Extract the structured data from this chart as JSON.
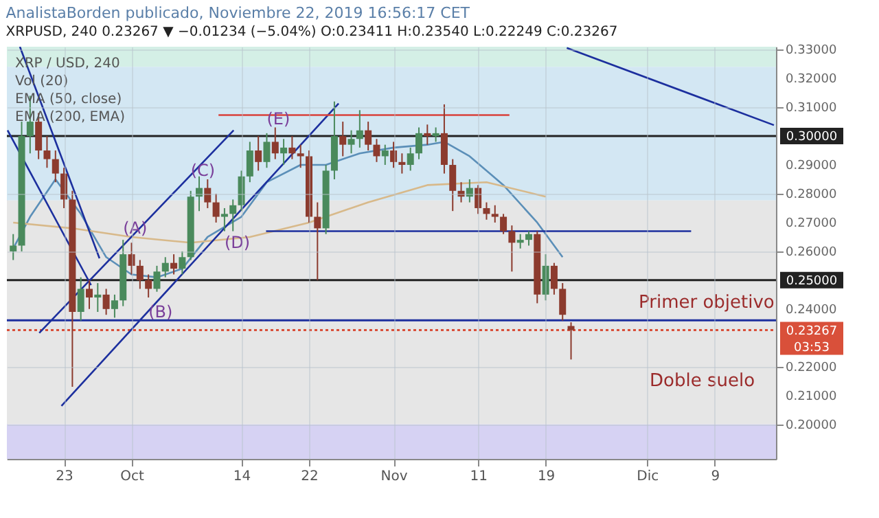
{
  "chart_data": {
    "type": "candlestick",
    "title": "AnalistaBorden publicado, Noviembre 22, 2019 16:56:17 CET",
    "subtitle": "XRPUSD, 240 0.23267 ▼ −0.01234 (−5.04%) O:0.23411 H:0.23540 L:0.22249 C:0.23267",
    "x": [
      "2019-09-17",
      "2019-09-18",
      "2019-09-19",
      "2019-09-20",
      "2019-09-21",
      "2019-09-22",
      "2019-09-23",
      "2019-09-24",
      "2019-09-25",
      "2019-09-26",
      "2019-09-27",
      "2019-09-28",
      "2019-09-29",
      "2019-09-30",
      "2019-10-01",
      "2019-10-02",
      "2019-10-03",
      "2019-10-04",
      "2019-10-05",
      "2019-10-06",
      "2019-10-07",
      "2019-10-08",
      "2019-10-09",
      "2019-10-10",
      "2019-10-11",
      "2019-10-12",
      "2019-10-13",
      "2019-10-14",
      "2019-10-15",
      "2019-10-16",
      "2019-10-17",
      "2019-10-18",
      "2019-10-19",
      "2019-10-20",
      "2019-10-21",
      "2019-10-22",
      "2019-10-23",
      "2019-10-24",
      "2019-10-25",
      "2019-10-26",
      "2019-10-27",
      "2019-10-28",
      "2019-10-29",
      "2019-10-30",
      "2019-10-31",
      "2019-11-01",
      "2019-11-02",
      "2019-11-03",
      "2019-11-04",
      "2019-11-05",
      "2019-11-06",
      "2019-11-07",
      "2019-11-08",
      "2019-11-09",
      "2019-11-10",
      "2019-11-11",
      "2019-11-12",
      "2019-11-13",
      "2019-11-14",
      "2019-11-15",
      "2019-11-16",
      "2019-11-17",
      "2019-11-18",
      "2019-11-19",
      "2019-11-20",
      "2019-11-21",
      "2019-11-22"
    ],
    "ohlc": [
      [
        0.26,
        0.266,
        0.257,
        0.262
      ],
      [
        0.262,
        0.305,
        0.26,
        0.3
      ],
      [
        0.3,
        0.314,
        0.294,
        0.305
      ],
      [
        0.305,
        0.308,
        0.292,
        0.295
      ],
      [
        0.295,
        0.3,
        0.289,
        0.292
      ],
      [
        0.292,
        0.295,
        0.284,
        0.287
      ],
      [
        0.287,
        0.289,
        0.275,
        0.278
      ],
      [
        0.278,
        0.281,
        0.213,
        0.239
      ],
      [
        0.239,
        0.251,
        0.236,
        0.247
      ],
      [
        0.247,
        0.25,
        0.24,
        0.244
      ],
      [
        0.244,
        0.249,
        0.239,
        0.245
      ],
      [
        0.245,
        0.247,
        0.238,
        0.24
      ],
      [
        0.24,
        0.245,
        0.237,
        0.243
      ],
      [
        0.243,
        0.264,
        0.241,
        0.259
      ],
      [
        0.259,
        0.263,
        0.252,
        0.255
      ],
      [
        0.255,
        0.257,
        0.247,
        0.25
      ],
      [
        0.25,
        0.252,
        0.244,
        0.247
      ],
      [
        0.247,
        0.255,
        0.246,
        0.253
      ],
      [
        0.253,
        0.258,
        0.251,
        0.256
      ],
      [
        0.256,
        0.259,
        0.252,
        0.254
      ],
      [
        0.254,
        0.26,
        0.252,
        0.258
      ],
      [
        0.258,
        0.281,
        0.257,
        0.279
      ],
      [
        0.279,
        0.286,
        0.274,
        0.282
      ],
      [
        0.282,
        0.285,
        0.275,
        0.277
      ],
      [
        0.277,
        0.28,
        0.27,
        0.272
      ],
      [
        0.272,
        0.275,
        0.267,
        0.273
      ],
      [
        0.273,
        0.278,
        0.267,
        0.276
      ],
      [
        0.276,
        0.288,
        0.274,
        0.286
      ],
      [
        0.286,
        0.298,
        0.284,
        0.295
      ],
      [
        0.295,
        0.3,
        0.288,
        0.291
      ],
      [
        0.291,
        0.301,
        0.289,
        0.298
      ],
      [
        0.298,
        0.303,
        0.292,
        0.294
      ],
      [
        0.294,
        0.299,
        0.29,
        0.296
      ],
      [
        0.296,
        0.3,
        0.292,
        0.294
      ],
      [
        0.294,
        0.297,
        0.289,
        0.293
      ],
      [
        0.293,
        0.295,
        0.27,
        0.272
      ],
      [
        0.272,
        0.277,
        0.25,
        0.268
      ],
      [
        0.268,
        0.29,
        0.266,
        0.288
      ],
      [
        0.288,
        0.312,
        0.285,
        0.3
      ],
      [
        0.3,
        0.305,
        0.293,
        0.297
      ],
      [
        0.297,
        0.302,
        0.294,
        0.299
      ],
      [
        0.299,
        0.309,
        0.296,
        0.302
      ],
      [
        0.302,
        0.305,
        0.295,
        0.297
      ],
      [
        0.297,
        0.299,
        0.291,
        0.293
      ],
      [
        0.293,
        0.297,
        0.29,
        0.295
      ],
      [
        0.295,
        0.298,
        0.289,
        0.291
      ],
      [
        0.291,
        0.294,
        0.287,
        0.29
      ],
      [
        0.29,
        0.296,
        0.288,
        0.294
      ],
      [
        0.294,
        0.303,
        0.292,
        0.301
      ],
      [
        0.301,
        0.304,
        0.297,
        0.3
      ],
      [
        0.3,
        0.303,
        0.298,
        0.301
      ],
      [
        0.301,
        0.311,
        0.287,
        0.29
      ],
      [
        0.29,
        0.292,
        0.274,
        0.281
      ],
      [
        0.281,
        0.284,
        0.277,
        0.279
      ],
      [
        0.279,
        0.285,
        0.277,
        0.282
      ],
      [
        0.282,
        0.283,
        0.273,
        0.275
      ],
      [
        0.275,
        0.277,
        0.271,
        0.273
      ],
      [
        0.273,
        0.276,
        0.27,
        0.272
      ],
      [
        0.272,
        0.273,
        0.266,
        0.267
      ],
      [
        0.267,
        0.269,
        0.253,
        0.263
      ],
      [
        0.263,
        0.266,
        0.261,
        0.264
      ],
      [
        0.264,
        0.267,
        0.262,
        0.266
      ],
      [
        0.266,
        0.267,
        0.242,
        0.245
      ],
      [
        0.245,
        0.259,
        0.243,
        0.255
      ],
      [
        0.255,
        0.256,
        0.245,
        0.247
      ],
      [
        0.247,
        0.249,
        0.236,
        0.238
      ],
      [
        0.23411,
        0.2354,
        0.22249,
        0.23267
      ]
    ],
    "colors": [
      "#4a8a5c",
      "#4a8a5c",
      "#4a8a5c",
      "#8c3b2e",
      "#8c3b2e",
      "#8c3b2e",
      "#8c3b2e",
      "#8c3b2e",
      "#4a8a5c",
      "#8c3b2e",
      "#4a8a5c",
      "#8c3b2e",
      "#4a8a5c",
      "#4a8a5c",
      "#8c3b2e",
      "#8c3b2e",
      "#8c3b2e",
      "#4a8a5c",
      "#4a8a5c",
      "#8c3b2e",
      "#4a8a5c",
      "#4a8a5c",
      "#4a8a5c",
      "#8c3b2e",
      "#8c3b2e",
      "#4a8a5c",
      "#4a8a5c",
      "#4a8a5c",
      "#4a8a5c",
      "#8c3b2e",
      "#4a8a5c",
      "#8c3b2e",
      "#4a8a5c",
      "#8c3b2e",
      "#8c3b2e",
      "#8c3b2e",
      "#8c3b2e",
      "#4a8a5c",
      "#4a8a5c",
      "#8c3b2e",
      "#4a8a5c",
      "#4a8a5c",
      "#8c3b2e",
      "#8c3b2e",
      "#4a8a5c",
      "#8c3b2e",
      "#8c3b2e",
      "#4a8a5c",
      "#4a8a5c",
      "#8c3b2e",
      "#4a8a5c",
      "#8c3b2e",
      "#8c3b2e",
      "#8c3b2e",
      "#4a8a5c",
      "#8c3b2e",
      "#8c3b2e",
      "#8c3b2e",
      "#8c3b2e",
      "#8c3b2e",
      "#4a8a5c",
      "#4a8a5c",
      "#8c3b2e",
      "#4a8a5c",
      "#8c3b2e",
      "#8c3b2e",
      "#8c3b2e"
    ],
    "series": [
      {
        "type": "line",
        "color": "#5b8fb8",
        "x": [
          "2019-09-17",
          "2019-09-19",
          "2019-09-22",
          "2019-09-25",
          "2019-09-28",
          "2019-10-01",
          "2019-10-04",
          "2019-10-07",
          "2019-10-10",
          "2019-10-14",
          "2019-10-17",
          "2019-10-21",
          "2019-10-24",
          "2019-10-28",
          "2019-11-01",
          "2019-11-05",
          "2019-11-07",
          "2019-11-10",
          "2019-11-14",
          "2019-11-18",
          "2019-11-21"
        ],
        "values": [
          0.261,
          0.272,
          0.285,
          0.273,
          0.258,
          0.252,
          0.251,
          0.254,
          0.265,
          0.272,
          0.284,
          0.29,
          0.29,
          0.294,
          0.296,
          0.297,
          0.298,
          0.293,
          0.283,
          0.27,
          0.258
        ]
      },
      {
        "type": "line",
        "color": "#d8b98a",
        "x": [
          "2019-09-17",
          "2019-09-24",
          "2019-10-01",
          "2019-10-08",
          "2019-10-15",
          "2019-10-22",
          "2019-10-29",
          "2019-11-05",
          "2019-11-12",
          "2019-11-19"
        ],
        "values": [
          0.27,
          0.268,
          0.265,
          0.263,
          0.265,
          0.27,
          0.277,
          0.283,
          0.284,
          0.279
        ]
      },
      {
        "type": "line",
        "color": "#1c2f9e",
        "x": [
          "2019-09-17T19:00",
          "2019-09-27T05:00"
        ],
        "values": [
          0.331,
          0.2576
        ]
      },
      {
        "type": "line",
        "color": "#1c2f9e",
        "x": [
          "2019-09-16T08:00",
          "2019-09-26T05:00"
        ],
        "values": [
          0.302,
          0.2483
        ]
      },
      {
        "type": "line",
        "color": "#1c2f9e",
        "x": [
          "2019-09-20T02:00",
          "2019-10-13T02:00"
        ],
        "values": [
          0.2317,
          0.302
        ]
      },
      {
        "type": "line",
        "color": "#1c2f9e",
        "x": [
          "2019-09-22T17:00",
          "2019-10-25T12:00"
        ],
        "values": [
          0.2064,
          0.3113
        ]
      },
      {
        "type": "line",
        "color": "#1c2f9e",
        "x": [
          "2019-11-21T12:00",
          "2019-12-16T00:00"
        ],
        "values": [
          0.3306,
          0.3038
        ]
      },
      {
        "type": "line",
        "color": "#d9403a",
        "x": [
          "2019-10-11T07:00",
          "2019-11-14T17:00"
        ],
        "values": [
          0.3073,
          0.3073
        ]
      },
      {
        "type": "line",
        "color": "#1c2f9e",
        "x": [
          "2019-10-16T22:00",
          "2019-12-06T05:00"
        ],
        "values": [
          0.267,
          0.267
        ]
      }
    ],
    "xlim": [
      "2019-09-16T06:00",
      "2019-12-16T06:00"
    ],
    "xticks": [
      {
        "value": "2019-09-23",
        "label": "23"
      },
      {
        "value": "2019-10-01",
        "label": "Oct"
      },
      {
        "value": "2019-10-14",
        "label": "14"
      },
      {
        "value": "2019-10-22",
        "label": "22"
      },
      {
        "value": "2019-11-01",
        "label": "Nov"
      },
      {
        "value": "2019-11-11",
        "label": "11"
      },
      {
        "value": "2019-11-19",
        "label": "19"
      },
      {
        "value": "2019-12-01",
        "label": "Dic"
      },
      {
        "value": "2019-12-09",
        "label": "9"
      }
    ],
    "ylim": [
      0.188,
      0.331
    ],
    "yticks": [
      {
        "value": 0.2,
        "label": "0.20000"
      },
      {
        "value": 0.21,
        "label": "0.21000"
      },
      {
        "value": 0.22,
        "label": "0.22000"
      },
      {
        "value": 0.24,
        "label": "0.24000"
      },
      {
        "value": 0.26,
        "label": "0.26000"
      },
      {
        "value": 0.27,
        "label": "0.27000"
      },
      {
        "value": 0.28,
        "label": "0.28000"
      },
      {
        "value": 0.29,
        "label": "0.29000"
      },
      {
        "value": 0.31,
        "label": "0.31000"
      },
      {
        "value": 0.32,
        "label": "0.32000"
      },
      {
        "value": 0.33,
        "label": "0.33000"
      }
    ],
    "grid": true,
    "bands": [
      {
        "axis": "y",
        "from": 0.324,
        "to": 0.331,
        "color": "#d4efe6"
      },
      {
        "axis": "y",
        "from": 0.2777,
        "to": 0.324,
        "color": "#d3e7f3"
      },
      {
        "axis": "y",
        "from": 0.2,
        "to": 0.2777,
        "color": "#e6e6e6"
      },
      {
        "axis": "y",
        "from": 0.188,
        "to": 0.2,
        "color": "#d6d2f3"
      }
    ],
    "ref_lines": [
      {
        "axis": "y",
        "value": 0.3,
        "label": "0.30000",
        "color": "#222222"
      },
      {
        "axis": "y",
        "value": 0.25,
        "label": "0.25000",
        "color": "#222222"
      },
      {
        "axis": "y",
        "value": 0.2361,
        "color": "#1c2f9e"
      },
      {
        "axis": "y",
        "value": 0.23267,
        "label": "0.23267\n03:53",
        "color": "#d9503a",
        "line_style": "dotted"
      }
    ],
    "annotations": [
      "XRP / USD, 240",
      "Vol (20)",
      "EMA (50, close)",
      "EMA (200, EMA)",
      {
        "text": "(A)",
        "x": "2019-09-30",
        "y": 0.268
      },
      {
        "text": "(B)",
        "x": "2019-10-03",
        "y": 0.239
      },
      {
        "text": "(C)",
        "x": "2019-10-08",
        "y": 0.288
      },
      {
        "text": "(D)",
        "x": "2019-10-12",
        "y": 0.263
      },
      {
        "text": "(E)",
        "x": "2019-10-17",
        "y": 0.306
      },
      "Primer objetivo",
      "Doble suelo"
    ]
  }
}
